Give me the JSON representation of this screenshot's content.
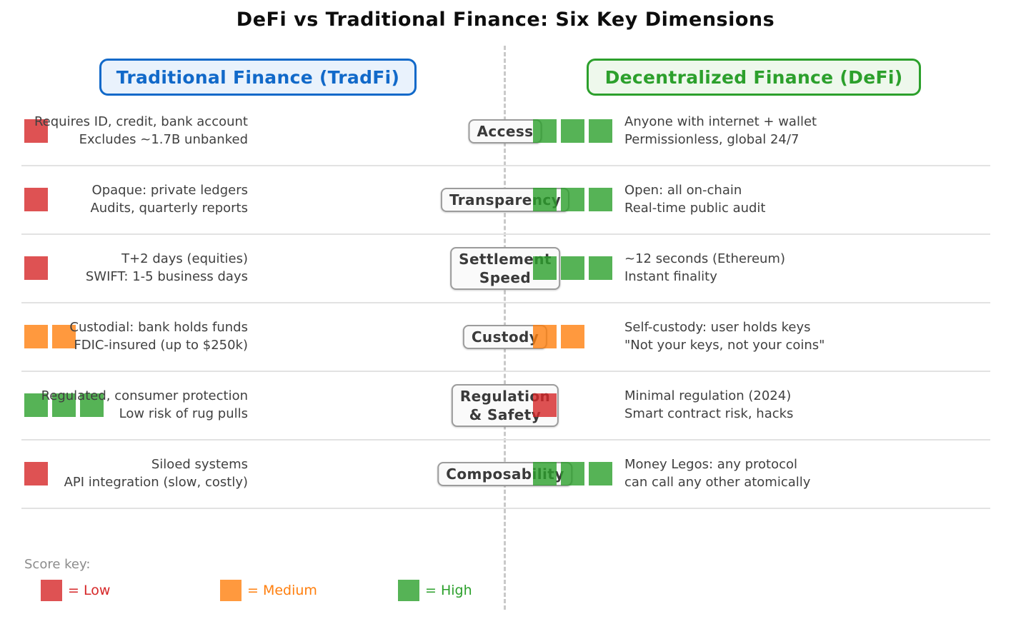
{
  "title": "DeFi vs Traditional Finance: Six Key Dimensions",
  "columns": {
    "tradfi": {
      "label": "Traditional Finance (TradFi)",
      "color": "#1169c9",
      "bg": "#e9f2fc"
    },
    "defi": {
      "label": "Decentralized Finance (DeFi)",
      "color": "#2ca02c",
      "bg": "#eef8ec"
    }
  },
  "score_colors": {
    "low": "#d62728",
    "medium": "#ff7f0e",
    "high": "#2ca02c"
  },
  "rows": [
    {
      "dimension": "Access",
      "tradfi": {
        "score": "low",
        "squares": 1,
        "line1": "Requires ID, credit, bank account",
        "line2": "Excludes ~1.7B unbanked"
      },
      "defi": {
        "score": "high",
        "squares": 3,
        "line1": "Anyone with internet + wallet",
        "line2": "Permissionless, global 24/7"
      }
    },
    {
      "dimension": "Transparency",
      "tradfi": {
        "score": "low",
        "squares": 1,
        "line1": "Opaque: private ledgers",
        "line2": "Audits, quarterly reports"
      },
      "defi": {
        "score": "high",
        "squares": 3,
        "line1": "Open: all on-chain",
        "line2": "Real-time public audit"
      }
    },
    {
      "dimension": "Settlement\nSpeed",
      "tradfi": {
        "score": "low",
        "squares": 1,
        "line1": "T+2 days (equities)",
        "line2": "SWIFT: 1-5 business days"
      },
      "defi": {
        "score": "high",
        "squares": 3,
        "line1": "~12 seconds (Ethereum)",
        "line2": "Instant finality"
      }
    },
    {
      "dimension": "Custody",
      "tradfi": {
        "score": "medium",
        "squares": 2,
        "line1": "Custodial: bank holds funds",
        "line2": "FDIC-insured (up to $250k)"
      },
      "defi": {
        "score": "medium",
        "squares": 2,
        "line1": "Self-custody: user holds keys",
        "line2": "\"Not your keys, not your coins\""
      }
    },
    {
      "dimension": "Regulation\n& Safety",
      "tradfi": {
        "score": "high",
        "squares": 3,
        "line1": "Regulated, consumer protection",
        "line2": "Low risk of rug pulls"
      },
      "defi": {
        "score": "low",
        "squares": 1,
        "line1": "Minimal regulation (2024)",
        "line2": "Smart contract risk, hacks"
      }
    },
    {
      "dimension": "Composability",
      "tradfi": {
        "score": "low",
        "squares": 1,
        "line1": "Siloed systems",
        "line2": "API integration (slow, costly)"
      },
      "defi": {
        "score": "high",
        "squares": 3,
        "line1": "Money Legos: any protocol",
        "line2": "can call any other atomically"
      }
    }
  ],
  "legend": {
    "title": "Score key:",
    "items": [
      {
        "key": "low",
        "label": "= Low"
      },
      {
        "key": "medium",
        "label": "= Medium"
      },
      {
        "key": "high",
        "label": "= High"
      }
    ]
  }
}
